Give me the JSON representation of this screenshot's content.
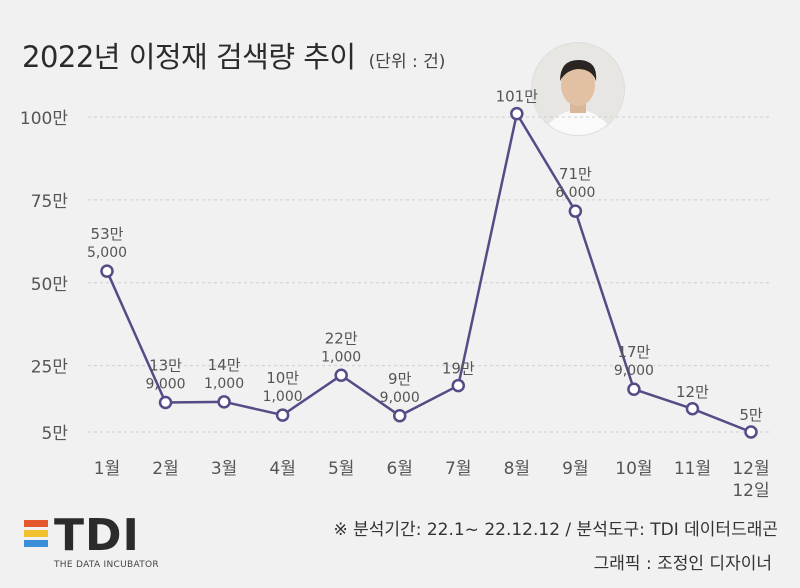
{
  "header": {
    "title": "2022년 이정재 검색량 추이",
    "unit": "(단위 : 건)"
  },
  "footer": {
    "source": "※ 분석기간: 22.1~ 22.12.12 / 분석도구: TDI 데이터드래곤",
    "credit": "그래픽 : 조정인 디자이너"
  },
  "logo": {
    "text": "TDI",
    "subtitle": "THE DATA INCUBATOR",
    "bar_colors": [
      "#e4572e",
      "#f2c12e",
      "#3b8fd8"
    ]
  },
  "colors": {
    "line": "#564b86",
    "grid": "#cfcfcf",
    "label": "#555555",
    "background": "#f1f1f1"
  },
  "chart_data": {
    "type": "line",
    "title": "2022년 이정재 검색량 추이",
    "xlabel": "",
    "ylabel": "",
    "categories": [
      "1월",
      "2월",
      "3월",
      "4월",
      "5월",
      "6월",
      "7월",
      "8월",
      "9월",
      "10월",
      "11월",
      "12월\n12일"
    ],
    "values": [
      535000,
      139000,
      141000,
      101000,
      221000,
      99000,
      190000,
      1010000,
      716000,
      179000,
      120000,
      50000
    ],
    "label_top": [
      "53만",
      "13만",
      "14만",
      "10만",
      "22만",
      "9만",
      "19만",
      "101만",
      "71만",
      "17만",
      "12만",
      "5만"
    ],
    "label_bottom": [
      "5,000",
      "9,000",
      "1,000",
      "1,000",
      "1,000",
      "9,000",
      "",
      "",
      "6,000",
      "9,000",
      "",
      ""
    ],
    "yticks": [
      50000,
      250000,
      500000,
      750000,
      1000000
    ],
    "ytick_labels": [
      "5만",
      "25만",
      "50만",
      "75만",
      "100만"
    ],
    "ylim": [
      50000,
      1000000
    ],
    "grid": true
  }
}
